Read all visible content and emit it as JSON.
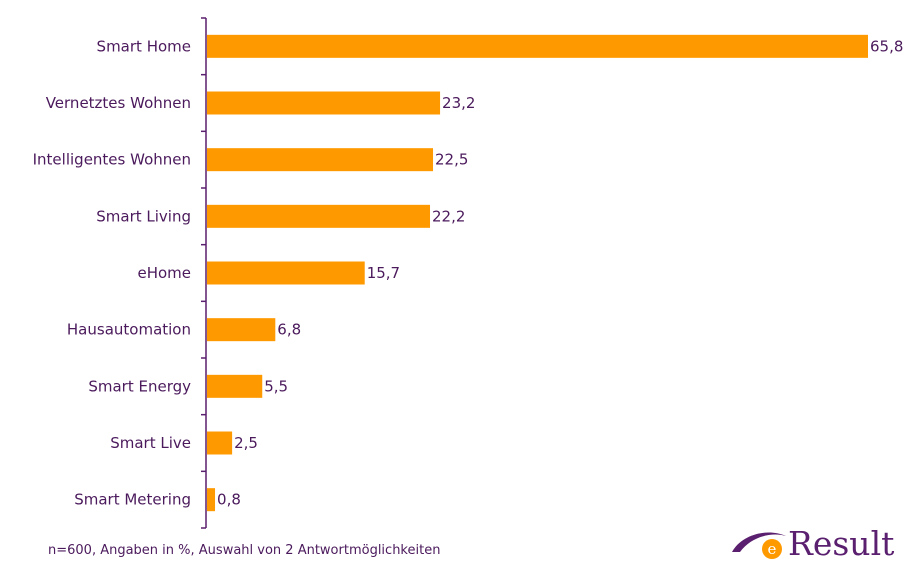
{
  "chart_data": {
    "type": "bar",
    "orientation": "horizontal",
    "categories": [
      "Smart Home",
      "Vernetztes Wohnen",
      "Intelligentes Wohnen",
      "Smart Living",
      "eHome",
      "Hausautomation",
      "Smart Energy",
      "Smart Live",
      "Smart Metering"
    ],
    "values": [
      65.8,
      23.2,
      22.5,
      22.2,
      15.7,
      6.8,
      5.5,
      2.5,
      0.8
    ],
    "value_labels": [
      "65,8",
      "23,2",
      "22,5",
      "22,2",
      "15,7",
      "6,8",
      "5,5",
      "2,5",
      "0,8"
    ],
    "xlim": [
      0,
      65.8
    ],
    "grid": false,
    "legend": "none",
    "bar_color": "#ff9900",
    "axis_color": "#5a1f6e",
    "text_color": "#4b1a5c"
  },
  "footnote": "n=600, Angaben in %, Auswahl von 2 Antwortmöglichkeiten",
  "logo": {
    "text": "Result",
    "mark_letter": "e",
    "accent_color": "#ff9900",
    "brand_color": "#5a1f6e"
  }
}
